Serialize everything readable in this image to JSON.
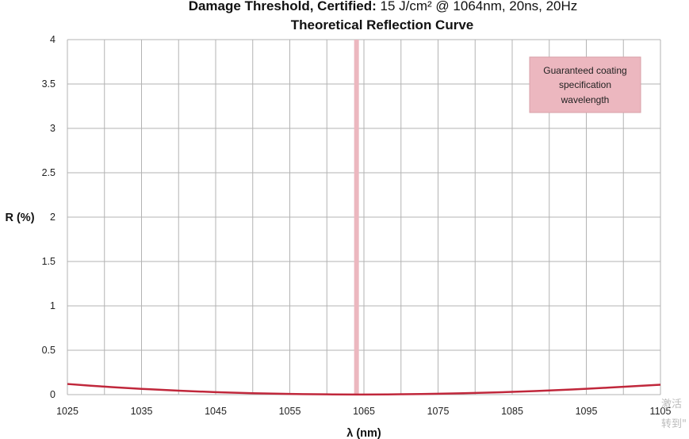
{
  "header": {
    "bold_part": "Damage Threshold, Certified:",
    "regular_part": " 15 J/cm² @ 1064nm, 20ns, 20Hz"
  },
  "watermark": [
    "激活",
    "转到\""
  ],
  "colors": {
    "curve": "#c0273b",
    "marker": "#ecb7bf",
    "annotation_fill": "#ecb7bf",
    "annotation_border": "#d9a2aa",
    "grid": "#b3b3b3"
  },
  "chart_data": {
    "type": "line",
    "title": "Theoretical Reflection Curve",
    "xlabel": "λ (nm)",
    "ylabel": "R (%)",
    "xlim": [
      1025,
      1105
    ],
    "ylim": [
      0,
      4
    ],
    "x_ticks": [
      1025,
      1030,
      1035,
      1040,
      1045,
      1050,
      1055,
      1060,
      1065,
      1070,
      1075,
      1080,
      1085,
      1090,
      1095,
      1100,
      1105
    ],
    "x_tick_labels": [
      "1025",
      "",
      "1035",
      "",
      "1045",
      "",
      "1055",
      "",
      "1065",
      "",
      "1075",
      "",
      "1085",
      "",
      "1095",
      "",
      "1105"
    ],
    "y_ticks": [
      0,
      0.5,
      1,
      1.5,
      2,
      2.5,
      3,
      3.5,
      4
    ],
    "y_tick_labels": [
      "0",
      "0.5",
      "1",
      "1.5",
      "2",
      "2.5",
      "3",
      "3.5",
      "4"
    ],
    "grid": true,
    "series": [
      {
        "x": [
          1025,
          1030,
          1035,
          1040,
          1045,
          1050,
          1055,
          1060,
          1064,
          1065,
          1070,
          1075,
          1080,
          1085,
          1090,
          1095,
          1100,
          1105
        ],
        "y": [
          0.12,
          0.09,
          0.065,
          0.045,
          0.028,
          0.016,
          0.008,
          0.003,
          0.001,
          0.001,
          0.004,
          0.01,
          0.019,
          0.031,
          0.047,
          0.066,
          0.088,
          0.112
        ]
      }
    ],
    "markers": [
      {
        "x": 1064,
        "label": "Guaranteed coating specification wavelength"
      }
    ],
    "annotation": {
      "lines": [
        "Guaranteed coating",
        "specification",
        "wavelength"
      ],
      "position": "top-right"
    }
  }
}
